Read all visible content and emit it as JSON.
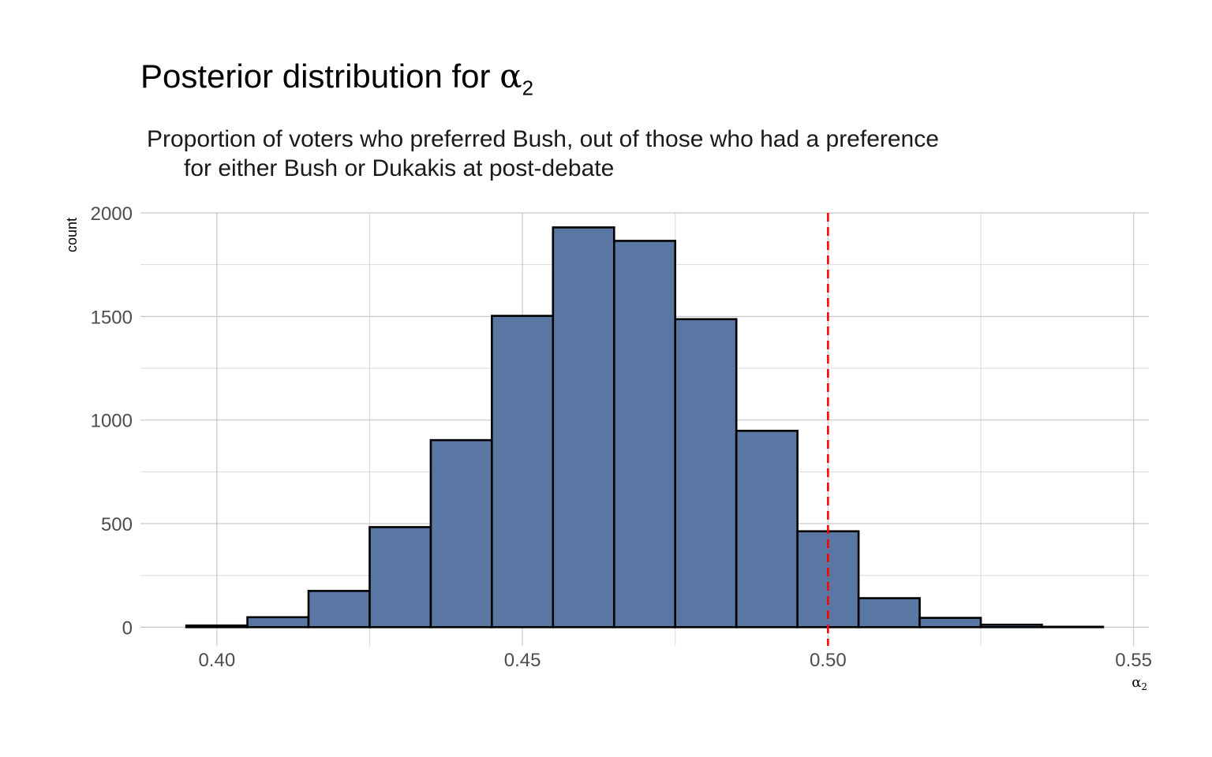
{
  "chart_data": {
    "type": "bar",
    "title_text": "Posterior distribution for ",
    "title_symbol": "α",
    "title_subscript": "2",
    "subtitle_line1": "Proportion of voters who preferred Bush, out of those who had a preference",
    "subtitle_line2": "for either Bush or Dukakis at post-debate",
    "xlabel_symbol": "α",
    "xlabel_subscript": "2",
    "ylabel": "count",
    "xlim": [
      0.3875,
      0.5525
    ],
    "ylim": [
      -90,
      2000
    ],
    "x_ticks": [
      0.4,
      0.45,
      0.5,
      0.55
    ],
    "x_tick_labels": [
      "0.40",
      "0.45",
      "0.50",
      "0.55"
    ],
    "x_minor_ticks": [
      0.425,
      0.475,
      0.525
    ],
    "y_ticks": [
      0,
      500,
      1000,
      1500,
      2000
    ],
    "y_tick_labels": [
      "0",
      "500",
      "1000",
      "1500",
      "2000"
    ],
    "y_minor_ticks": [
      250,
      750,
      1250,
      1750
    ],
    "bin_width": 0.01,
    "bin_centers": [
      0.4,
      0.41,
      0.42,
      0.43,
      0.44,
      0.45,
      0.46,
      0.47,
      0.48,
      0.49,
      0.5,
      0.51,
      0.52,
      0.53,
      0.54
    ],
    "values": [
      8,
      48,
      175,
      483,
      903,
      1503,
      1930,
      1865,
      1487,
      948,
      463,
      140,
      45,
      12,
      2
    ],
    "reference_line": {
      "x": 0.5,
      "color": "#ff0000",
      "style": "dashed"
    },
    "bar_fill": "#5a77a3",
    "bar_stroke": "#000000",
    "grid": true,
    "legend": "none"
  }
}
